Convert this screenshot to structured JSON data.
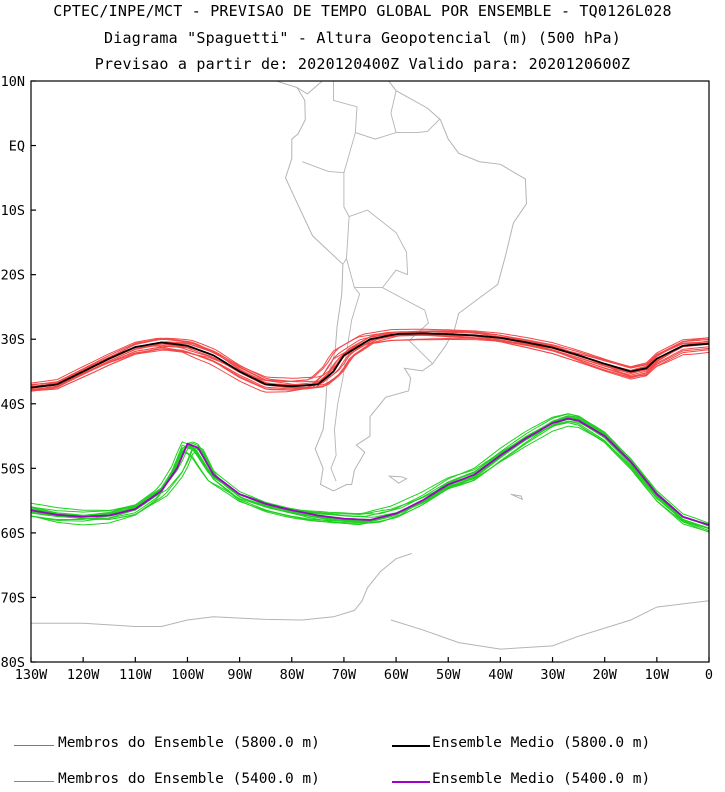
{
  "header": {
    "line1": "CPTEC/INPE/MCT - PREVISAO DE TEMPO GLOBAL POR ENSEMBLE - TQ0126L028",
    "line2": "Diagrama \"Spaguetti\" - Altura Geopotencial (m) (500 hPa)",
    "line3": "Previsao a partir de: 2020120400Z  Valido para: 2020120600Z"
  },
  "axes": {
    "lat_ticks": [
      "10N",
      "EQ",
      "10S",
      "20S",
      "30S",
      "40S",
      "50S",
      "60S",
      "70S",
      "80S"
    ],
    "lat_values": [
      10,
      0,
      -10,
      -20,
      -30,
      -40,
      -50,
      -60,
      -70,
      -80
    ],
    "lon_ticks": [
      "130W",
      "120W",
      "110W",
      "100W",
      "90W",
      "80W",
      "70W",
      "60W",
      "50W",
      "40W",
      "30W",
      "20W",
      "10W",
      "0"
    ],
    "lon_values": [
      -130,
      -120,
      -110,
      -100,
      -90,
      -80,
      -70,
      -60,
      -50,
      -40,
      -30,
      -20,
      -10,
      0
    ],
    "lon_range": [
      -130,
      0
    ],
    "lat_range": [
      -80,
      10
    ]
  },
  "colors": {
    "member_5800": "#f24848",
    "mean_5800": "#000000",
    "member_5400": "#20d020",
    "mean_5400": "#a000c8",
    "coast": "#b4b4b4"
  },
  "chart_data": {
    "type": "line",
    "series": [
      {
        "name": "Ensemble Medio (5800.0 m)",
        "lon": [
          -130,
          -125,
          -120,
          -115,
          -110,
          -105,
          -100,
          -95,
          -90,
          -85,
          -80,
          -75,
          -72,
          -70,
          -67,
          -65,
          -60,
          -55,
          -50,
          -45,
          -40,
          -35,
          -30,
          -25,
          -20,
          -15,
          -12,
          -10,
          -5,
          0
        ],
        "lat": [
          -37.5,
          -37,
          -35,
          -33,
          -31.2,
          -30.5,
          -31,
          -32.5,
          -35,
          -37,
          -37.3,
          -37,
          -35,
          -32.5,
          -31,
          -30,
          -29.2,
          -29.1,
          -29.2,
          -29.4,
          -29.8,
          -30.5,
          -31.3,
          -32.5,
          -33.8,
          -35,
          -34.5,
          -33,
          -31,
          -30.7
        ]
      },
      {
        "name": "Ensemble Medio (5400.0 m)",
        "lon": [
          -130,
          -125,
          -120,
          -115,
          -110,
          -105,
          -102,
          -100,
          -98,
          -95,
          -90,
          -85,
          -80,
          -75,
          -70,
          -65,
          -60,
          -55,
          -50,
          -45,
          -40,
          -35,
          -30,
          -27,
          -25,
          -20,
          -15,
          -10,
          -5,
          0
        ],
        "lat": [
          -56.5,
          -57.2,
          -57.5,
          -57.3,
          -56.3,
          -53.5,
          -50,
          -46.2,
          -46.8,
          -51,
          -54,
          -55.5,
          -56.5,
          -57.3,
          -57.8,
          -58,
          -57,
          -55,
          -52.5,
          -51,
          -48,
          -45.3,
          -43,
          -42.3,
          -42.6,
          -45,
          -49,
          -54,
          -57.5,
          -58.8
        ]
      }
    ],
    "members": {
      "count_5800": 15,
      "count_5400": 15,
      "name_5800": "Membros do Ensemble (5800.0 m)",
      "name_5400": "Membros do Ensemble (5400.0 m)"
    }
  },
  "legend": {
    "member_5800": "Membros do Ensemble (5800.0 m)",
    "mean_5800": "Ensemble Medio (5800.0 m)",
    "member_5400": "Membros do Ensemble (5400.0 m)",
    "mean_5400": "Ensemble Medio (5400.0 m)"
  },
  "geography": {
    "south_america": [
      [
        -79,
        9
      ],
      [
        -77,
        8
      ],
      [
        -72,
        11.5
      ],
      [
        -62,
        10.6
      ],
      [
        -60,
        8.5
      ],
      [
        -54,
        5.8
      ],
      [
        -51.5,
        4
      ],
      [
        -50,
        1
      ],
      [
        -48,
        -1.2
      ],
      [
        -44,
        -2.5
      ],
      [
        -40,
        -2.9
      ],
      [
        -35.2,
        -5.2
      ],
      [
        -35,
        -9
      ],
      [
        -37.5,
        -12
      ],
      [
        -39,
        -17
      ],
      [
        -40.5,
        -21.5
      ],
      [
        -43,
        -23
      ],
      [
        -48,
        -26
      ],
      [
        -48.8,
        -28.5
      ],
      [
        -50.5,
        -31
      ],
      [
        -53,
        -33.8
      ],
      [
        -55,
        -34.9
      ],
      [
        -58.4,
        -34.5
      ],
      [
        -57.2,
        -36
      ],
      [
        -57.6,
        -38
      ],
      [
        -62,
        -39
      ],
      [
        -65,
        -42
      ],
      [
        -65,
        -45
      ],
      [
        -67.6,
        -46.4
      ],
      [
        -66,
        -47.5
      ],
      [
        -68,
        -50.3
      ],
      [
        -68.5,
        -52.5
      ],
      [
        -69.5,
        -52.5
      ],
      [
        -72,
        -53.5
      ],
      [
        -74.5,
        -52.5
      ],
      [
        -74,
        -50
      ],
      [
        -75.5,
        -47
      ],
      [
        -74,
        -44
      ],
      [
        -73.5,
        -40
      ],
      [
        -73.2,
        -36
      ],
      [
        -71.7,
        -32
      ],
      [
        -71.3,
        -28
      ],
      [
        -70.4,
        -23
      ],
      [
        -70.2,
        -18.4
      ],
      [
        -76,
        -14
      ],
      [
        -79.5,
        -8
      ],
      [
        -81.2,
        -5
      ],
      [
        -80,
        -2
      ],
      [
        -80,
        1
      ],
      [
        -78.8,
        1.8
      ],
      [
        -77.4,
        4
      ],
      [
        -77.5,
        7
      ],
      [
        -79,
        9
      ]
    ],
    "borders": [
      [
        [
          -72,
          11.5
        ],
        [
          -72,
          7
        ],
        [
          -67.5,
          6
        ],
        [
          -67.8,
          2
        ],
        [
          -70,
          -4.2
        ],
        [
          -73,
          -4
        ],
        [
          -78,
          -2.5
        ]
      ],
      [
        [
          -70,
          -4.2
        ],
        [
          -70,
          -9.5
        ],
        [
          -69,
          -11
        ],
        [
          -69.5,
          -17.5
        ],
        [
          -70.2,
          -18.4
        ]
      ],
      [
        [
          -69.5,
          -17.5
        ],
        [
          -68,
          -22
        ],
        [
          -67,
          -23
        ],
        [
          -68.5,
          -27
        ],
        [
          -69.5,
          -32
        ],
        [
          -70.2,
          -36
        ],
        [
          -71.2,
          -40
        ],
        [
          -71.8,
          -44
        ],
        [
          -71.5,
          -48
        ],
        [
          -72.5,
          -50
        ],
        [
          -71.5,
          -52
        ]
      ],
      [
        [
          -69,
          -11
        ],
        [
          -65.5,
          -10
        ],
        [
          -60,
          -13.5
        ],
        [
          -58,
          -16.5
        ],
        [
          -57.8,
          -20
        ]
      ],
      [
        [
          -68,
          -22
        ],
        [
          -62.6,
          -22
        ],
        [
          -60,
          -19.3
        ],
        [
          -57.8,
          -20
        ]
      ],
      [
        [
          -62.6,
          -22
        ],
        [
          -58,
          -24
        ],
        [
          -54.5,
          -25.5
        ]
      ],
      [
        [
          -54.5,
          -25.5
        ],
        [
          -53.8,
          -27.5
        ],
        [
          -57.5,
          -30.2
        ],
        [
          -53,
          -33.8
        ]
      ],
      [
        [
          -60,
          8.5
        ],
        [
          -61,
          5
        ],
        [
          -60,
          2
        ],
        [
          -56,
          2
        ],
        [
          -54,
          2.2
        ],
        [
          -51.6,
          4.1
        ]
      ],
      [
        [
          -67.8,
          2
        ],
        [
          -64,
          1
        ],
        [
          -60,
          2
        ]
      ]
    ],
    "central_america": [
      [
        -79,
        9
      ],
      [
        -83,
        10
      ],
      [
        -86,
        13
      ],
      [
        -88,
        14.5
      ]
    ],
    "falklands": [
      [
        -61.3,
        -51.2
      ],
      [
        -59,
        -51.3
      ],
      [
        -58,
        -51.6
      ],
      [
        -59.5,
        -52.3
      ],
      [
        -61.3,
        -51.2
      ]
    ],
    "antarctic_peninsula": [
      [
        -57,
        -63.2
      ],
      [
        -60,
        -64
      ],
      [
        -63,
        -66
      ],
      [
        -65.5,
        -68.5
      ],
      [
        -66.5,
        -70.5
      ],
      [
        -68,
        -72
      ],
      [
        -72,
        -73
      ],
      [
        -78,
        -73.5
      ],
      [
        -85,
        -73.4
      ],
      [
        -95,
        -73
      ],
      [
        -100,
        -73.5
      ],
      [
        -105,
        -74.5
      ],
      [
        -110,
        -74.5
      ],
      [
        -120,
        -74
      ],
      [
        -130,
        -74
      ]
    ],
    "antarctic_coast2": [
      [
        -61,
        -73.5
      ],
      [
        -55,
        -75
      ],
      [
        -48,
        -77
      ],
      [
        -40,
        -78
      ],
      [
        -30,
        -77.5
      ],
      [
        -25,
        -76
      ],
      [
        -15,
        -73.5
      ],
      [
        -10,
        -71.5
      ],
      [
        -5,
        -71
      ],
      [
        0,
        -70.5
      ]
    ],
    "south_georgia": [
      [
        -38,
        -54
      ],
      [
        -36,
        -54.3
      ],
      [
        -35.8,
        -54.8
      ],
      [
        -38,
        -54
      ]
    ]
  }
}
